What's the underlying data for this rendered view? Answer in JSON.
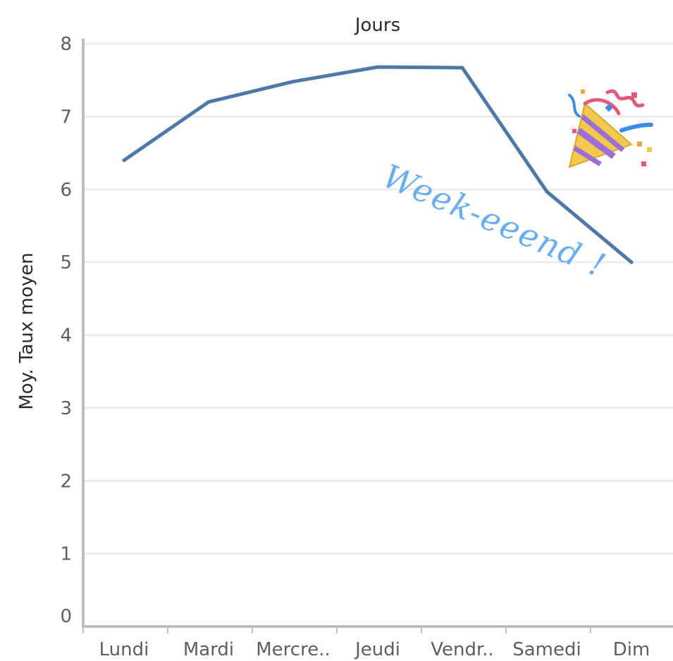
{
  "chart_data": {
    "type": "line",
    "title": "",
    "xlabel": "Jours",
    "ylabel": "Moy. Taux moyen",
    "categories": [
      "Lundi",
      "Mardi",
      "Mercre..",
      "Jeudi",
      "Vendr..",
      "Samedi",
      "Dim"
    ],
    "series": [
      {
        "values": [
          6.4,
          7.2,
          7.48,
          7.68,
          7.67,
          5.97,
          5.0
        ]
      }
    ],
    "ylim": [
      0,
      8
    ],
    "yticks": [
      "0",
      "1",
      "2",
      "3",
      "4",
      "5",
      "6",
      "7",
      "8"
    ],
    "grid": true,
    "x_axis_position": "top",
    "annotation": "Week-eeend !",
    "colors": {
      "line": "#4e79a7",
      "grid": "#ececec",
      "axis": "#bdbdbd",
      "annotation": "#6aaef0"
    }
  },
  "decoration": {
    "icon": "party-popper-icon"
  }
}
